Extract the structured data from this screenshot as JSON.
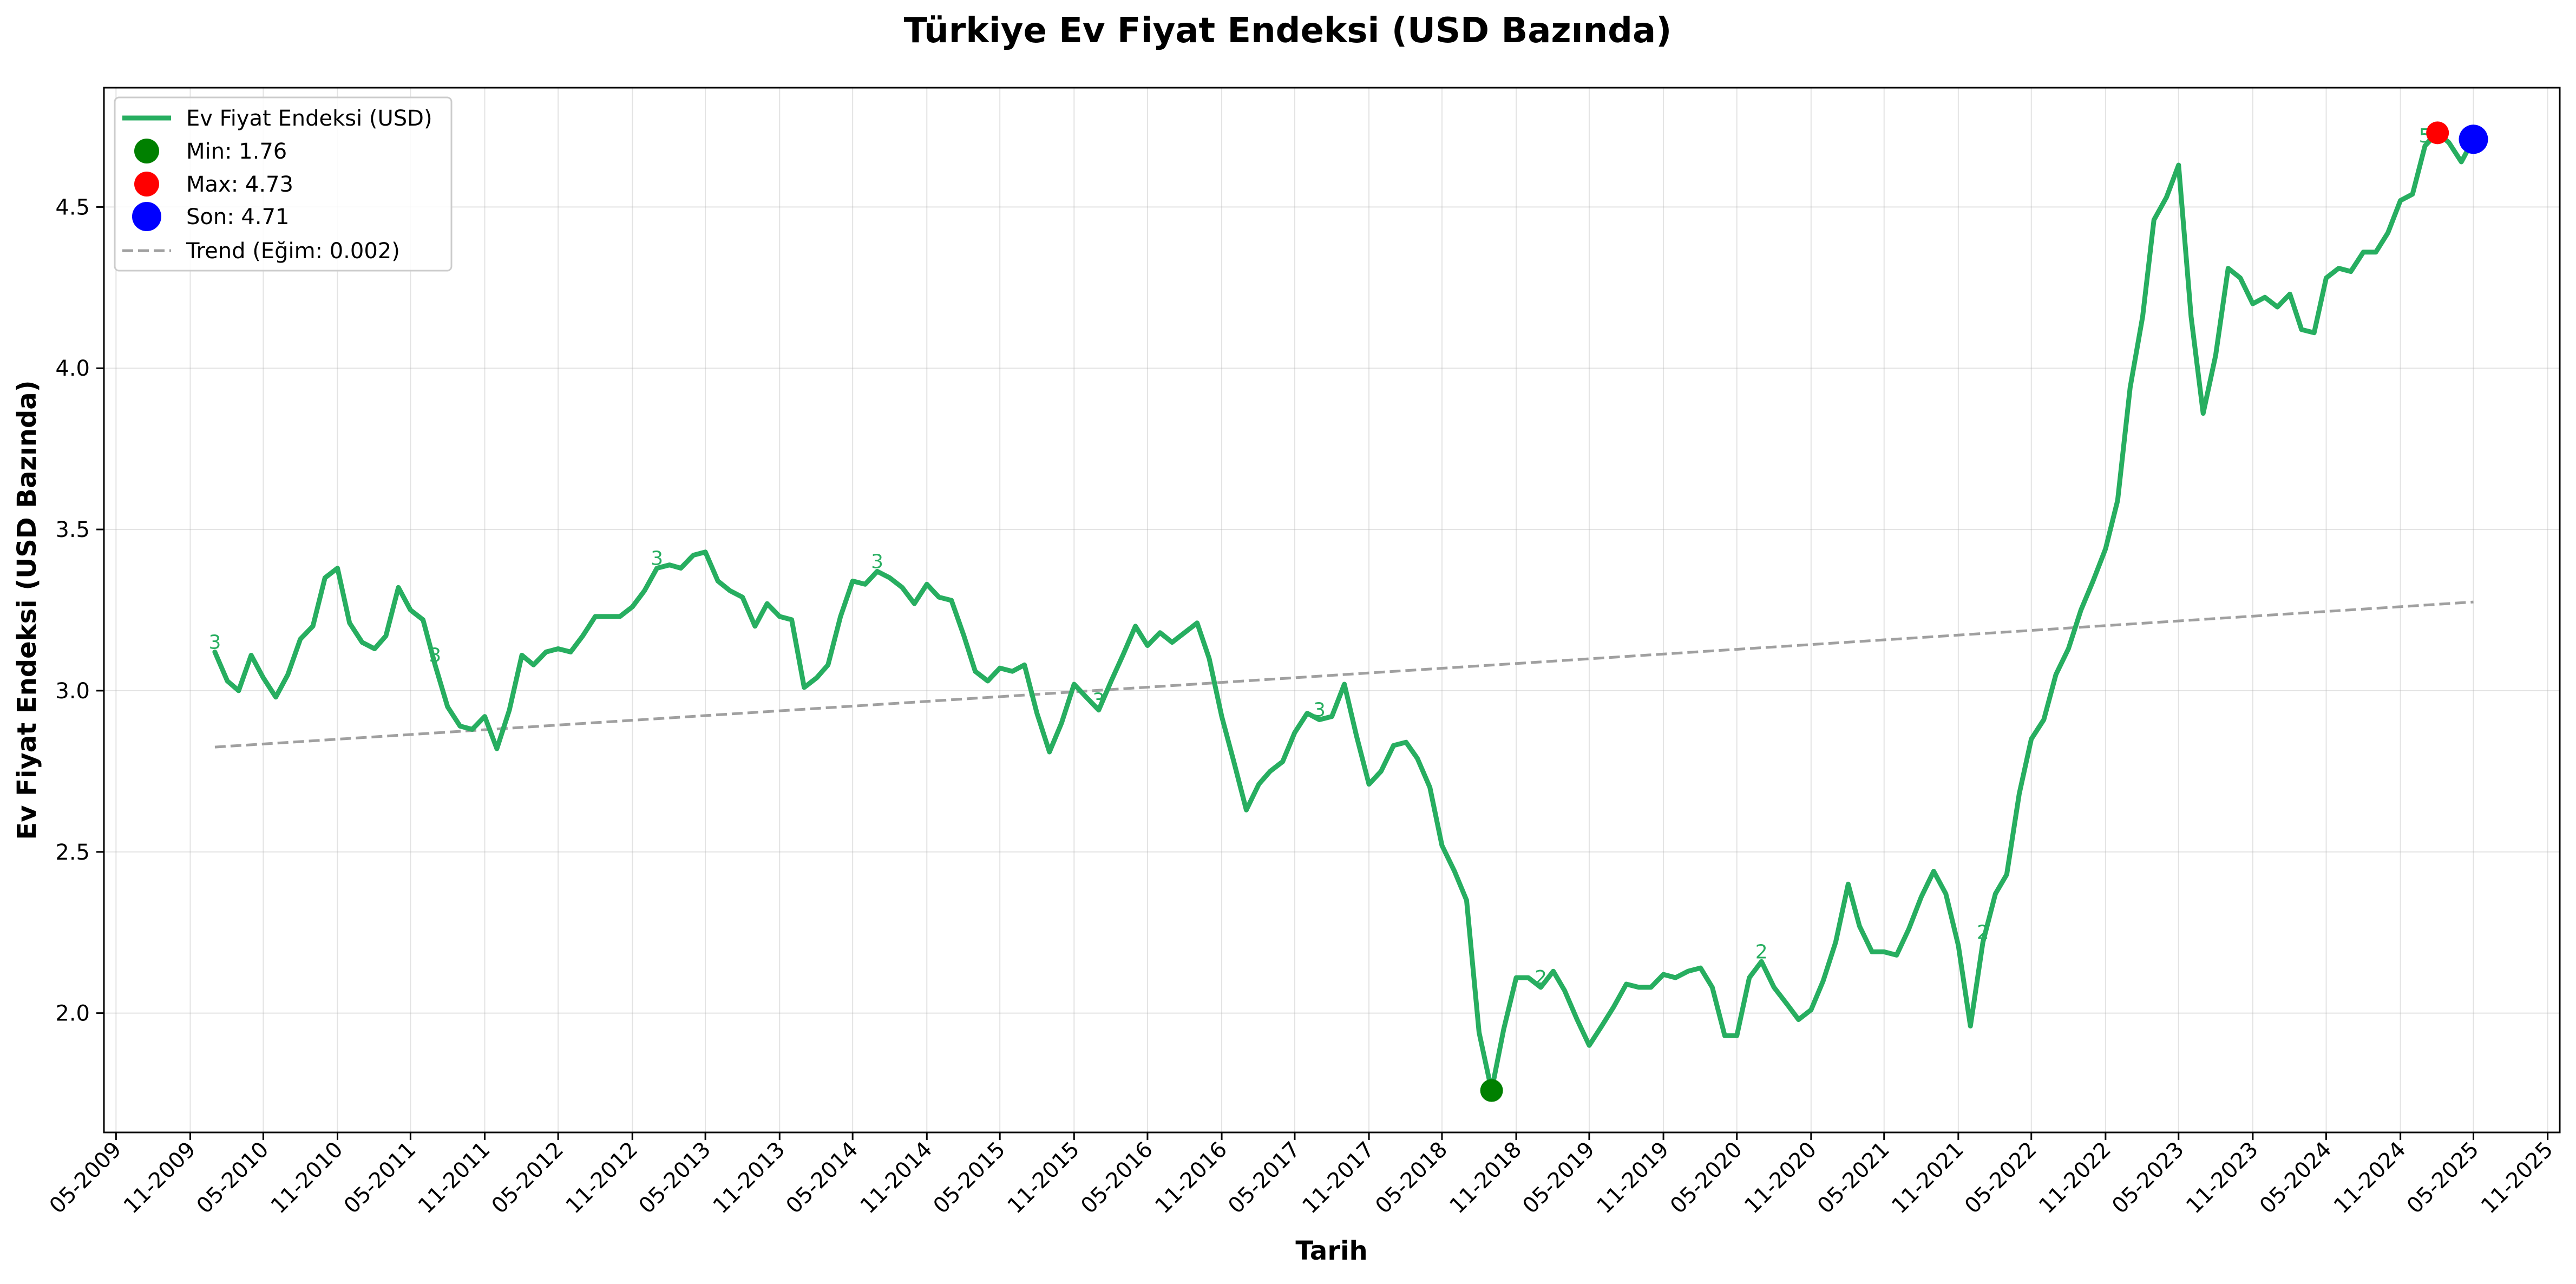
{
  "chart_data": {
    "type": "line",
    "title": "Türkiye Ev Fiyat Endeksi (USD Bazında)",
    "xlabel": "Tarih",
    "ylabel": "Ev Fiyat Endeksi (USD Bazında)",
    "xlim": [
      "2009-04-01",
      "2025-12-01"
    ],
    "ylim": [
      1.63,
      4.87
    ],
    "grid": true,
    "legend_position": "top-left",
    "x_tick_labels": [
      "05-2009",
      "11-2009",
      "05-2010",
      "11-2010",
      "05-2011",
      "11-2011",
      "05-2012",
      "11-2012",
      "05-2013",
      "11-2013",
      "05-2014",
      "11-2014",
      "05-2015",
      "11-2015",
      "05-2016",
      "11-2016",
      "05-2017",
      "11-2017",
      "05-2018",
      "11-2018",
      "05-2019",
      "11-2019",
      "05-2020",
      "11-2020",
      "05-2021",
      "11-2021",
      "05-2022",
      "11-2022",
      "05-2023",
      "11-2023",
      "05-2024",
      "11-2024",
      "05-2025",
      "11-2025"
    ],
    "y_ticks": [
      2.0,
      2.5,
      3.0,
      3.5,
      4.0,
      4.5
    ],
    "y_tick_labels": [
      "2.0",
      "2.5",
      "3.0",
      "3.5",
      "4.0",
      "4.5"
    ],
    "series": [
      {
        "name": "Ev Fiyat Endeksi (USD)",
        "color": "#27ae60",
        "points": [
          [
            "2010-01",
            3.12
          ],
          [
            "2010-02",
            3.03
          ],
          [
            "2010-03",
            3.0
          ],
          [
            "2010-04",
            3.11
          ],
          [
            "2010-05",
            3.04
          ],
          [
            "2010-06",
            2.98
          ],
          [
            "2010-07",
            3.05
          ],
          [
            "2010-08",
            3.16
          ],
          [
            "2010-09",
            3.2
          ],
          [
            "2010-10",
            3.35
          ],
          [
            "2010-11",
            3.38
          ],
          [
            "2010-12",
            3.21
          ],
          [
            "2011-01",
            3.15
          ],
          [
            "2011-02",
            3.13
          ],
          [
            "2011-03",
            3.17
          ],
          [
            "2011-04",
            3.32
          ],
          [
            "2011-05",
            3.25
          ],
          [
            "2011-06",
            3.22
          ],
          [
            "2011-07",
            3.08
          ],
          [
            "2011-08",
            2.95
          ],
          [
            "2011-09",
            2.89
          ],
          [
            "2011-10",
            2.88
          ],
          [
            "2011-11",
            2.92
          ],
          [
            "2011-12",
            2.82
          ],
          [
            "2012-01",
            2.94
          ],
          [
            "2012-02",
            3.11
          ],
          [
            "2012-03",
            3.08
          ],
          [
            "2012-04",
            3.12
          ],
          [
            "2012-05",
            3.13
          ],
          [
            "2012-06",
            3.12
          ],
          [
            "2012-07",
            3.17
          ],
          [
            "2012-08",
            3.23
          ],
          [
            "2012-09",
            3.23
          ],
          [
            "2012-10",
            3.23
          ],
          [
            "2012-11",
            3.26
          ],
          [
            "2012-12",
            3.31
          ],
          [
            "2013-01",
            3.38
          ],
          [
            "2013-02",
            3.39
          ],
          [
            "2013-03",
            3.38
          ],
          [
            "2013-04",
            3.42
          ],
          [
            "2013-05",
            3.43
          ],
          [
            "2013-06",
            3.34
          ],
          [
            "2013-07",
            3.31
          ],
          [
            "2013-08",
            3.29
          ],
          [
            "2013-09",
            3.2
          ],
          [
            "2013-10",
            3.27
          ],
          [
            "2013-11",
            3.23
          ],
          [
            "2013-12",
            3.22
          ],
          [
            "2014-01",
            3.01
          ],
          [
            "2014-02",
            3.04
          ],
          [
            "2014-03",
            3.08
          ],
          [
            "2014-04",
            3.23
          ],
          [
            "2014-05",
            3.34
          ],
          [
            "2014-06",
            3.33
          ],
          [
            "2014-07",
            3.37
          ],
          [
            "2014-08",
            3.35
          ],
          [
            "2014-09",
            3.32
          ],
          [
            "2014-10",
            3.27
          ],
          [
            "2014-11",
            3.33
          ],
          [
            "2014-12",
            3.29
          ],
          [
            "2015-01",
            3.28
          ],
          [
            "2015-02",
            3.17
          ],
          [
            "2015-03",
            3.06
          ],
          [
            "2015-04",
            3.03
          ],
          [
            "2015-05",
            3.07
          ],
          [
            "2015-06",
            3.06
          ],
          [
            "2015-07",
            3.08
          ],
          [
            "2015-08",
            2.93
          ],
          [
            "2015-09",
            2.81
          ],
          [
            "2015-10",
            2.9
          ],
          [
            "2015-11",
            3.02
          ],
          [
            "2015-12",
            2.98
          ],
          [
            "2016-01",
            2.94
          ],
          [
            "2016-02",
            3.03
          ],
          [
            "2016-03",
            3.11
          ],
          [
            "2016-04",
            3.2
          ],
          [
            "2016-05",
            3.14
          ],
          [
            "2016-06",
            3.18
          ],
          [
            "2016-07",
            3.15
          ],
          [
            "2016-08",
            3.18
          ],
          [
            "2016-09",
            3.21
          ],
          [
            "2016-10",
            3.1
          ],
          [
            "2016-11",
            2.92
          ],
          [
            "2016-12",
            2.78
          ],
          [
            "2017-01",
            2.63
          ],
          [
            "2017-02",
            2.71
          ],
          [
            "2017-03",
            2.75
          ],
          [
            "2017-04",
            2.78
          ],
          [
            "2017-05",
            2.87
          ],
          [
            "2017-06",
            2.93
          ],
          [
            "2017-07",
            2.91
          ],
          [
            "2017-08",
            2.92
          ],
          [
            "2017-09",
            3.02
          ],
          [
            "2017-10",
            2.86
          ],
          [
            "2017-11",
            2.71
          ],
          [
            "2017-12",
            2.75
          ],
          [
            "2018-01",
            2.83
          ],
          [
            "2018-02",
            2.84
          ],
          [
            "2018-03",
            2.79
          ],
          [
            "2018-04",
            2.7
          ],
          [
            "2018-05",
            2.52
          ],
          [
            "2018-06",
            2.44
          ],
          [
            "2018-07",
            2.35
          ],
          [
            "2018-08",
            1.94
          ],
          [
            "2018-09",
            1.76
          ],
          [
            "2018-10",
            1.95
          ],
          [
            "2018-11",
            2.11
          ],
          [
            "2018-12",
            2.11
          ],
          [
            "2019-01",
            2.08
          ],
          [
            "2019-02",
            2.13
          ],
          [
            "2019-03",
            2.07
          ],
          [
            "2019-04",
            1.98
          ],
          [
            "2019-05",
            1.9
          ],
          [
            "2019-06",
            1.96
          ],
          [
            "2019-07",
            2.02
          ],
          [
            "2019-08",
            2.09
          ],
          [
            "2019-09",
            2.08
          ],
          [
            "2019-10",
            2.08
          ],
          [
            "2019-11",
            2.12
          ],
          [
            "2019-12",
            2.11
          ],
          [
            "2020-01",
            2.13
          ],
          [
            "2020-02",
            2.14
          ],
          [
            "2020-03",
            2.08
          ],
          [
            "2020-04",
            1.93
          ],
          [
            "2020-05",
            1.93
          ],
          [
            "2020-06",
            2.11
          ],
          [
            "2020-07",
            2.16
          ],
          [
            "2020-08",
            2.08
          ],
          [
            "2020-09",
            2.03
          ],
          [
            "2020-10",
            1.98
          ],
          [
            "2020-11",
            2.01
          ],
          [
            "2020-12",
            2.1
          ],
          [
            "2021-01",
            2.22
          ],
          [
            "2021-02",
            2.4
          ],
          [
            "2021-03",
            2.27
          ],
          [
            "2021-04",
            2.19
          ],
          [
            "2021-05",
            2.19
          ],
          [
            "2021-06",
            2.18
          ],
          [
            "2021-07",
            2.26
          ],
          [
            "2021-08",
            2.36
          ],
          [
            "2021-09",
            2.44
          ],
          [
            "2021-10",
            2.37
          ],
          [
            "2021-11",
            2.21
          ],
          [
            "2021-12",
            1.96
          ],
          [
            "2022-01",
            2.22
          ],
          [
            "2022-02",
            2.37
          ],
          [
            "2022-03",
            2.43
          ],
          [
            "2022-04",
            2.68
          ],
          [
            "2022-05",
            2.85
          ],
          [
            "2022-06",
            2.91
          ],
          [
            "2022-07",
            3.05
          ],
          [
            "2022-08",
            3.13
          ],
          [
            "2022-09",
            3.25
          ],
          [
            "2022-10",
            3.34
          ],
          [
            "2022-11",
            3.44
          ],
          [
            "2022-12",
            3.59
          ],
          [
            "2023-01",
            3.94
          ],
          [
            "2023-02",
            4.16
          ],
          [
            "2023-03",
            4.46
          ],
          [
            "2023-04",
            4.53
          ],
          [
            "2023-05",
            4.63
          ],
          [
            "2023-06",
            4.16
          ],
          [
            "2023-07",
            3.86
          ],
          [
            "2023-08",
            4.04
          ],
          [
            "2023-09",
            4.31
          ],
          [
            "2023-10",
            4.28
          ],
          [
            "2023-11",
            4.2
          ],
          [
            "2023-12",
            4.22
          ],
          [
            "2024-01",
            4.19
          ],
          [
            "2024-02",
            4.23
          ],
          [
            "2024-03",
            4.12
          ],
          [
            "2024-04",
            4.11
          ],
          [
            "2024-05",
            4.28
          ],
          [
            "2024-06",
            4.31
          ],
          [
            "2024-07",
            4.3
          ],
          [
            "2024-08",
            4.36
          ],
          [
            "2024-09",
            4.36
          ],
          [
            "2024-10",
            4.42
          ],
          [
            "2024-11",
            4.52
          ],
          [
            "2024-12",
            4.54
          ],
          [
            "2025-01",
            4.69
          ],
          [
            "2025-02",
            4.73
          ],
          [
            "2025-03",
            4.7
          ],
          [
            "2025-04",
            4.64
          ],
          [
            "2025-05",
            4.71
          ]
        ]
      }
    ],
    "trend": {
      "name": "Trend (Eğim: 0.002)",
      "color": "#a0a0a0",
      "start": [
        "2010-01",
        2.825
      ],
      "end": [
        "2025-05",
        3.275
      ]
    },
    "markers": [
      {
        "label": "Min: 1.76",
        "x": "2018-09",
        "y": 1.76,
        "color": "#008000",
        "size": "small"
      },
      {
        "label": "Max: 4.73",
        "x": "2025-02",
        "y": 4.73,
        "color": "#ff0000",
        "size": "small"
      },
      {
        "label": "Son: 4.71",
        "x": "2025-05",
        "y": 4.71,
        "color": "#0000ff",
        "size": "large"
      }
    ],
    "data_labels": [
      {
        "x": "2010-01",
        "y": 3.12,
        "text": "3"
      },
      {
        "x": "2011-07",
        "y": 3.08,
        "text": "3"
      },
      {
        "x": "2013-01",
        "y": 3.38,
        "text": "3"
      },
      {
        "x": "2014-07",
        "y": 3.37,
        "text": "3"
      },
      {
        "x": "2016-01",
        "y": 2.94,
        "text": "3"
      },
      {
        "x": "2017-07",
        "y": 2.91,
        "text": "3"
      },
      {
        "x": "2019-01",
        "y": 2.08,
        "text": "2"
      },
      {
        "x": "2020-07",
        "y": 2.16,
        "text": "2"
      },
      {
        "x": "2022-01",
        "y": 2.22,
        "text": "2"
      },
      {
        "x": "2025-01",
        "y": 4.69,
        "text": "5"
      }
    ]
  }
}
